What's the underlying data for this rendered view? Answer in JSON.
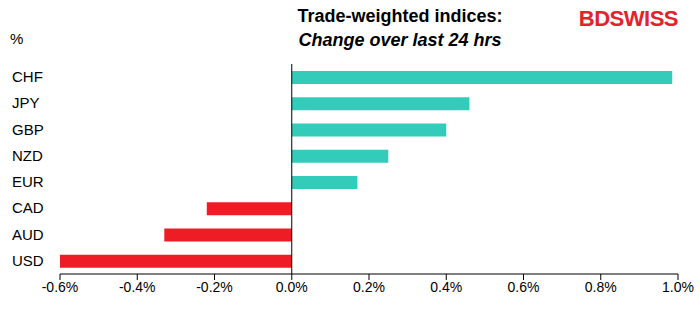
{
  "chart_data": {
    "type": "bar",
    "orientation": "horizontal",
    "title": "Trade-weighted indices:",
    "subtitle": "Change over last 24 hrs",
    "unit_label": "%",
    "logo": "BDSWISS",
    "categories": [
      "CHF",
      "JPY",
      "GBP",
      "NZD",
      "EUR",
      "CAD",
      "AUD",
      "USD"
    ],
    "values": [
      0.985,
      0.46,
      0.4,
      0.25,
      0.17,
      -0.22,
      -0.33,
      -0.6
    ],
    "colors": [
      "#33ccbb",
      "#33ccbb",
      "#33ccbb",
      "#33ccbb",
      "#33ccbb",
      "#ee1c25",
      "#ee1c25",
      "#ee1c25"
    ],
    "xlim": [
      -0.6,
      1.0
    ],
    "xticks": [
      {
        "value": -0.6,
        "label": "-0.6%"
      },
      {
        "value": -0.4,
        "label": "-0.4%"
      },
      {
        "value": -0.2,
        "label": "-0.2%"
      },
      {
        "value": 0,
        "label": "0.0%"
      },
      {
        "value": 0.2,
        "label": "0.2%"
      },
      {
        "value": 0.4,
        "label": "0.4%"
      },
      {
        "value": 0.6,
        "label": "0.6%"
      },
      {
        "value": 0.8,
        "label": "0.8%"
      },
      {
        "value": 1.0,
        "label": "1.0%"
      }
    ],
    "grid": false
  }
}
